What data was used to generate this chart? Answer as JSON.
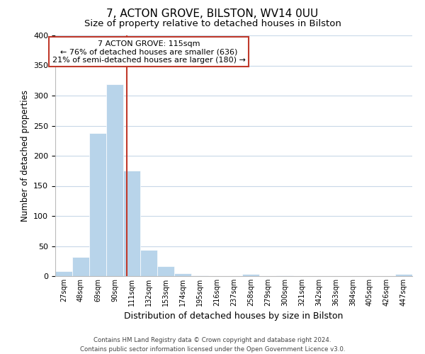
{
  "title": "7, ACTON GROVE, BILSTON, WV14 0UU",
  "subtitle": "Size of property relative to detached houses in Bilston",
  "xlabel": "Distribution of detached houses by size in Bilston",
  "ylabel": "Number of detached properties",
  "bar_color": "#b8d4ea",
  "bar_edgecolor": "#ffffff",
  "background_color": "#ffffff",
  "grid_color": "#c8d8e8",
  "bins": [
    27,
    48,
    69,
    90,
    111,
    132,
    153,
    174,
    195,
    216,
    237,
    258,
    279,
    300,
    321,
    342,
    363,
    384,
    405,
    426,
    447
  ],
  "counts": [
    8,
    32,
    238,
    319,
    175,
    44,
    17,
    5,
    1,
    0,
    0,
    3,
    0,
    1,
    0,
    0,
    0,
    0,
    0,
    0,
    3
  ],
  "property_value": 115,
  "vline_color": "#c0392b",
  "annotation_text": "7 ACTON GROVE: 115sqm\n← 76% of detached houses are smaller (636)\n21% of semi-detached houses are larger (180) →",
  "annotation_box_edgecolor": "#c0392b",
  "annotation_box_facecolor": "#ffffff",
  "ylim": [
    0,
    400
  ],
  "yticks": [
    0,
    50,
    100,
    150,
    200,
    250,
    300,
    350,
    400
  ],
  "footer_line1": "Contains HM Land Registry data © Crown copyright and database right 2024.",
  "footer_line2": "Contains public sector information licensed under the Open Government Licence v3.0.",
  "title_fontsize": 11,
  "subtitle_fontsize": 9.5,
  "xlabel_fontsize": 9,
  "ylabel_fontsize": 8.5,
  "tick_labels": [
    "27sqm",
    "48sqm",
    "69sqm",
    "90sqm",
    "111sqm",
    "132sqm",
    "153sqm",
    "174sqm",
    "195sqm",
    "216sqm",
    "237sqm",
    "258sqm",
    "279sqm",
    "300sqm",
    "321sqm",
    "342sqm",
    "363sqm",
    "384sqm",
    "405sqm",
    "426sqm",
    "447sqm"
  ]
}
